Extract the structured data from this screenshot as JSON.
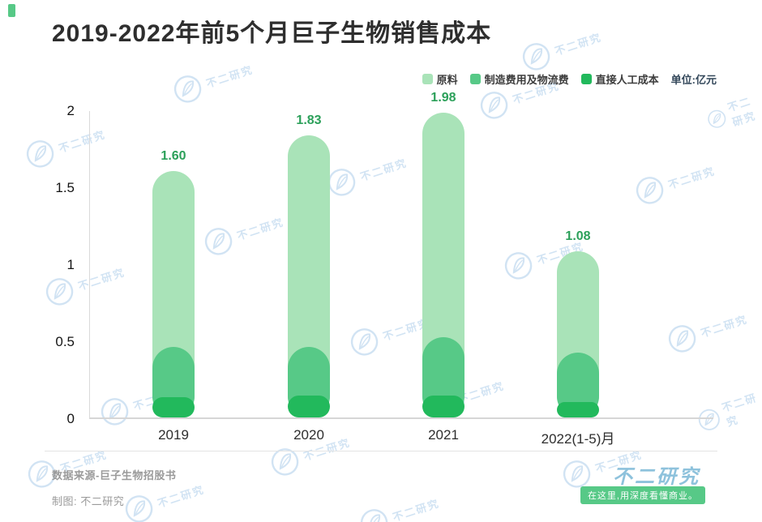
{
  "title": "2019-2022年前5个月巨子生物销售成本",
  "legend": {
    "items": [
      {
        "label": "原料",
        "color": "#a9e3b8"
      },
      {
        "label": "制造费用及物流费",
        "color": "#57c987"
      },
      {
        "label": "直接人工成本",
        "color": "#22b95c"
      }
    ],
    "unit_label": "单位:亿元"
  },
  "chart_data": {
    "type": "bar",
    "stacked": true,
    "title": "2019-2022年前5个月巨子生物销售成本",
    "unit": "亿元",
    "categories": [
      "2019",
      "2020",
      "2021",
      "2022(1-5)月"
    ],
    "series": [
      {
        "name": "直接人工成本",
        "color": "#22b95c",
        "values": [
          0.13,
          0.14,
          0.14,
          0.1
        ]
      },
      {
        "name": "制造费用及物流费",
        "color": "#57c987",
        "values": [
          0.33,
          0.32,
          0.38,
          0.32
        ]
      },
      {
        "name": "原料",
        "color": "#a9e3b8",
        "values": [
          1.14,
          1.37,
          1.46,
          0.66
        ]
      }
    ],
    "totals": [
      1.6,
      1.83,
      1.98,
      1.08
    ],
    "total_labels": [
      "1.60",
      "1.83",
      "1.98",
      "1.08"
    ],
    "yticks": [
      "0",
      "0.5",
      "1",
      "1.5",
      "2"
    ],
    "ylim": [
      0,
      2
    ],
    "grid": false,
    "legend_position": "top-right"
  },
  "footer": {
    "source": "数据来源-巨子生物招股书",
    "credit": "制图: 不二研究",
    "brand": "不二研究",
    "brand_tagline": "在这里,用深度看懂商业。"
  },
  "watermark": "不二研究"
}
